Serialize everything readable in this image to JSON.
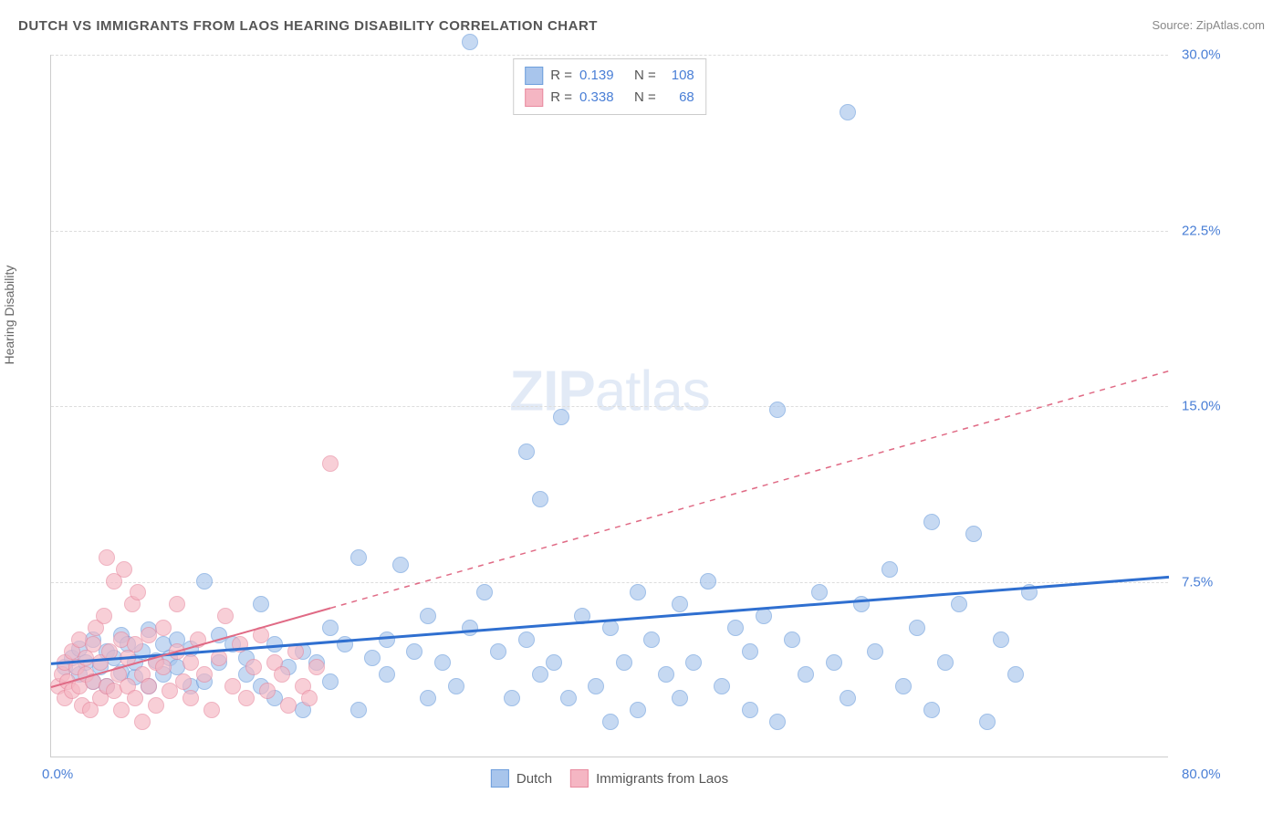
{
  "title": "DUTCH VS IMMIGRANTS FROM LAOS HEARING DISABILITY CORRELATION CHART",
  "source": "Source: ZipAtlas.com",
  "y_axis_label": "Hearing Disability",
  "watermark": {
    "bold": "ZIP",
    "light": "atlas"
  },
  "chart": {
    "type": "scatter",
    "background_color": "#ffffff",
    "grid_color": "#dddddd",
    "axis_color": "#cccccc",
    "xlim": [
      0,
      80
    ],
    "ylim": [
      0,
      30
    ],
    "xticks": [
      {
        "value": 0,
        "label": "0.0%"
      },
      {
        "value": 80,
        "label": "80.0%"
      }
    ],
    "yticks": [
      {
        "value": 7.5,
        "label": "7.5%"
      },
      {
        "value": 15.0,
        "label": "15.0%"
      },
      {
        "value": 22.5,
        "label": "22.5%"
      },
      {
        "value": 30.0,
        "label": "30.0%"
      }
    ],
    "tick_color": "#4a7fd6",
    "tick_fontsize": 15,
    "series": [
      {
        "name": "Dutch",
        "fill_color": "#a8c5ec",
        "stroke_color": "#6d9edc",
        "fill_opacity": 0.65,
        "marker_radius": 9,
        "R": "0.139",
        "N": "108",
        "trend": {
          "x1": 0,
          "y1": 4.0,
          "x2": 80,
          "y2": 7.7,
          "color": "#2f6fd0",
          "width": 3,
          "dash": "none",
          "solid_until_x": 80
        },
        "points": [
          [
            1,
            3.8
          ],
          [
            1.5,
            4.2
          ],
          [
            2,
            3.5
          ],
          [
            2,
            4.6
          ],
          [
            2.5,
            4.0
          ],
          [
            3,
            3.2
          ],
          [
            3,
            5.0
          ],
          [
            3.5,
            3.8
          ],
          [
            4,
            4.5
          ],
          [
            4,
            3.0
          ],
          [
            4.5,
            4.2
          ],
          [
            5,
            5.2
          ],
          [
            5,
            3.6
          ],
          [
            5.5,
            4.8
          ],
          [
            6,
            3.4
          ],
          [
            6,
            4.0
          ],
          [
            6.5,
            4.5
          ],
          [
            7,
            3.0
          ],
          [
            7,
            5.4
          ],
          [
            7.5,
            4.1
          ],
          [
            8,
            4.8
          ],
          [
            8,
            3.5
          ],
          [
            8.5,
            4.2
          ],
          [
            9,
            3.8
          ],
          [
            9,
            5.0
          ],
          [
            10,
            3.0
          ],
          [
            10,
            4.6
          ],
          [
            11,
            7.5
          ],
          [
            11,
            3.2
          ],
          [
            12,
            4.0
          ],
          [
            12,
            5.2
          ],
          [
            13,
            4.8
          ],
          [
            14,
            3.5
          ],
          [
            14,
            4.2
          ],
          [
            15,
            3.0
          ],
          [
            15,
            6.5
          ],
          [
            16,
            2.5
          ],
          [
            16,
            4.8
          ],
          [
            17,
            3.8
          ],
          [
            18,
            4.5
          ],
          [
            18,
            2.0
          ],
          [
            19,
            4.0
          ],
          [
            20,
            5.5
          ],
          [
            20,
            3.2
          ],
          [
            21,
            4.8
          ],
          [
            22,
            2.0
          ],
          [
            22,
            8.5
          ],
          [
            23,
            4.2
          ],
          [
            24,
            3.5
          ],
          [
            24,
            5.0
          ],
          [
            25,
            8.2
          ],
          [
            26,
            4.5
          ],
          [
            27,
            2.5
          ],
          [
            27,
            6.0
          ],
          [
            28,
            4.0
          ],
          [
            29,
            3.0
          ],
          [
            30,
            5.5
          ],
          [
            30,
            30.5
          ],
          [
            31,
            7.0
          ],
          [
            32,
            4.5
          ],
          [
            33,
            2.5
          ],
          [
            34,
            13.0
          ],
          [
            34,
            5.0
          ],
          [
            35,
            11.0
          ],
          [
            35,
            3.5
          ],
          [
            36,
            4.0
          ],
          [
            36.5,
            14.5
          ],
          [
            37,
            2.5
          ],
          [
            38,
            6.0
          ],
          [
            39,
            3.0
          ],
          [
            40,
            5.5
          ],
          [
            40,
            1.5
          ],
          [
            41,
            4.0
          ],
          [
            42,
            7.0
          ],
          [
            42,
            2.0
          ],
          [
            43,
            5.0
          ],
          [
            44,
            3.5
          ],
          [
            45,
            6.5
          ],
          [
            45,
            2.5
          ],
          [
            46,
            4.0
          ],
          [
            47,
            7.5
          ],
          [
            48,
            3.0
          ],
          [
            49,
            5.5
          ],
          [
            50,
            2.0
          ],
          [
            50,
            4.5
          ],
          [
            51,
            6.0
          ],
          [
            52,
            1.5
          ],
          [
            52,
            14.8
          ],
          [
            53,
            5.0
          ],
          [
            54,
            3.5
          ],
          [
            55,
            7.0
          ],
          [
            56,
            4.0
          ],
          [
            57,
            27.5
          ],
          [
            57,
            2.5
          ],
          [
            58,
            6.5
          ],
          [
            59,
            4.5
          ],
          [
            60,
            8.0
          ],
          [
            61,
            3.0
          ],
          [
            62,
            5.5
          ],
          [
            63,
            10.0
          ],
          [
            63,
            2.0
          ],
          [
            64,
            4.0
          ],
          [
            65,
            6.5
          ],
          [
            66,
            9.5
          ],
          [
            67,
            1.5
          ],
          [
            68,
            5.0
          ],
          [
            69,
            3.5
          ],
          [
            70,
            7.0
          ]
        ]
      },
      {
        "name": "Immigrants from Laos",
        "fill_color": "#f5b6c3",
        "stroke_color": "#e88a9f",
        "fill_opacity": 0.65,
        "marker_radius": 9,
        "R": "0.338",
        "N": "68",
        "trend": {
          "x1": 0,
          "y1": 3.0,
          "x2": 80,
          "y2": 16.5,
          "color": "#e06a85",
          "width": 2,
          "dash": "6,6",
          "solid_until_x": 20
        },
        "points": [
          [
            0.5,
            3.0
          ],
          [
            0.8,
            3.5
          ],
          [
            1,
            2.5
          ],
          [
            1,
            4.0
          ],
          [
            1.2,
            3.2
          ],
          [
            1.5,
            4.5
          ],
          [
            1.5,
            2.8
          ],
          [
            1.8,
            3.8
          ],
          [
            2,
            3.0
          ],
          [
            2,
            5.0
          ],
          [
            2.2,
            2.2
          ],
          [
            2.5,
            4.2
          ],
          [
            2.5,
            3.5
          ],
          [
            2.8,
            2.0
          ],
          [
            3,
            4.8
          ],
          [
            3,
            3.2
          ],
          [
            3.2,
            5.5
          ],
          [
            3.5,
            2.5
          ],
          [
            3.5,
            4.0
          ],
          [
            3.8,
            6.0
          ],
          [
            4,
            3.0
          ],
          [
            4,
            8.5
          ],
          [
            4.2,
            4.5
          ],
          [
            4.5,
            2.8
          ],
          [
            4.5,
            7.5
          ],
          [
            4.8,
            3.5
          ],
          [
            5,
            5.0
          ],
          [
            5,
            2.0
          ],
          [
            5.2,
            8.0
          ],
          [
            5.5,
            4.2
          ],
          [
            5.5,
            3.0
          ],
          [
            5.8,
            6.5
          ],
          [
            6,
            2.5
          ],
          [
            6,
            4.8
          ],
          [
            6.2,
            7.0
          ],
          [
            6.5,
            3.5
          ],
          [
            6.5,
            1.5
          ],
          [
            7,
            5.2
          ],
          [
            7,
            3.0
          ],
          [
            7.5,
            4.0
          ],
          [
            7.5,
            2.2
          ],
          [
            8,
            3.8
          ],
          [
            8,
            5.5
          ],
          [
            8.5,
            2.8
          ],
          [
            9,
            4.5
          ],
          [
            9,
            6.5
          ],
          [
            9.5,
            3.2
          ],
          [
            10,
            2.5
          ],
          [
            10,
            4.0
          ],
          [
            10.5,
            5.0
          ],
          [
            11,
            3.5
          ],
          [
            11.5,
            2.0
          ],
          [
            12,
            4.2
          ],
          [
            12.5,
            6.0
          ],
          [
            13,
            3.0
          ],
          [
            13.5,
            4.8
          ],
          [
            14,
            2.5
          ],
          [
            14.5,
            3.8
          ],
          [
            15,
            5.2
          ],
          [
            15.5,
            2.8
          ],
          [
            16,
            4.0
          ],
          [
            16.5,
            3.5
          ],
          [
            17,
            2.2
          ],
          [
            17.5,
            4.5
          ],
          [
            18,
            3.0
          ],
          [
            18.5,
            2.5
          ],
          [
            19,
            3.8
          ],
          [
            20,
            12.5
          ]
        ]
      }
    ],
    "stats_legend": {
      "label_color": "#555555",
      "value_color": "#4a7fd6",
      "rows": [
        {
          "swatch_fill": "#a8c5ec",
          "swatch_stroke": "#6d9edc",
          "r_label": "R =",
          "r_value": "0.139",
          "n_label": "N =",
          "n_value": "108"
        },
        {
          "swatch_fill": "#f5b6c3",
          "swatch_stroke": "#e88a9f",
          "r_label": "R =",
          "r_value": "0.338",
          "n_label": "N =",
          "n_value": "68"
        }
      ]
    },
    "bottom_legend": [
      {
        "swatch_fill": "#a8c5ec",
        "swatch_stroke": "#6d9edc",
        "label": "Dutch"
      },
      {
        "swatch_fill": "#f5b6c3",
        "swatch_stroke": "#e88a9f",
        "label": "Immigrants from Laos"
      }
    ]
  }
}
